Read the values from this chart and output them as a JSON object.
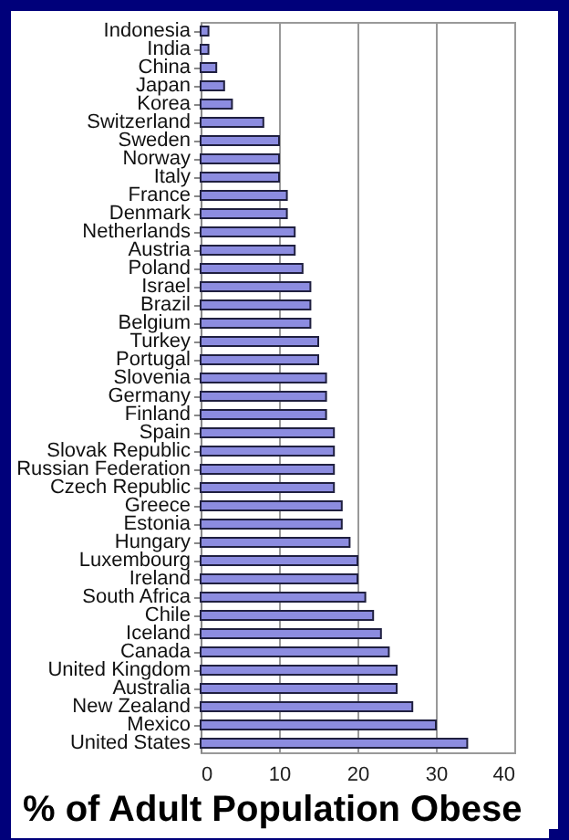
{
  "chart_data": {
    "type": "bar",
    "orientation": "horizontal",
    "xlabel": "% of Adult Population Obese",
    "categories": [
      "Indonesia",
      "India",
      "China",
      "Japan",
      "Korea",
      "Switzerland",
      "Sweden",
      "Norway",
      "Italy",
      "France",
      "Denmark",
      "Netherlands",
      "Austria",
      "Poland",
      "Israel",
      "Brazil",
      "Belgium",
      "Turkey",
      "Portugal",
      "Slovenia",
      "Germany",
      "Finland",
      "Spain",
      "Slovak Republic",
      "Russian Federation",
      "Czech Republic",
      "Greece",
      "Estonia",
      "Hungary",
      "Luxembourg",
      "Ireland",
      "South Africa",
      "Chile",
      "Iceland",
      "Canada",
      "United Kingdom",
      "Australia",
      "New Zealand",
      "Mexico",
      "United States"
    ],
    "values": [
      1,
      1,
      2,
      3,
      4,
      8,
      10,
      10,
      10,
      11,
      11,
      12,
      12,
      13,
      14,
      14,
      14,
      15,
      15,
      16,
      16,
      16,
      17,
      17,
      17,
      17,
      18,
      18,
      19,
      20,
      20,
      21,
      22,
      23,
      24,
      25,
      25,
      27,
      30,
      34
    ],
    "color": "#8c8ce0",
    "xlim": [
      0,
      40
    ],
    "xticks": [
      0,
      10,
      20,
      30,
      40
    ],
    "grid": "x"
  }
}
